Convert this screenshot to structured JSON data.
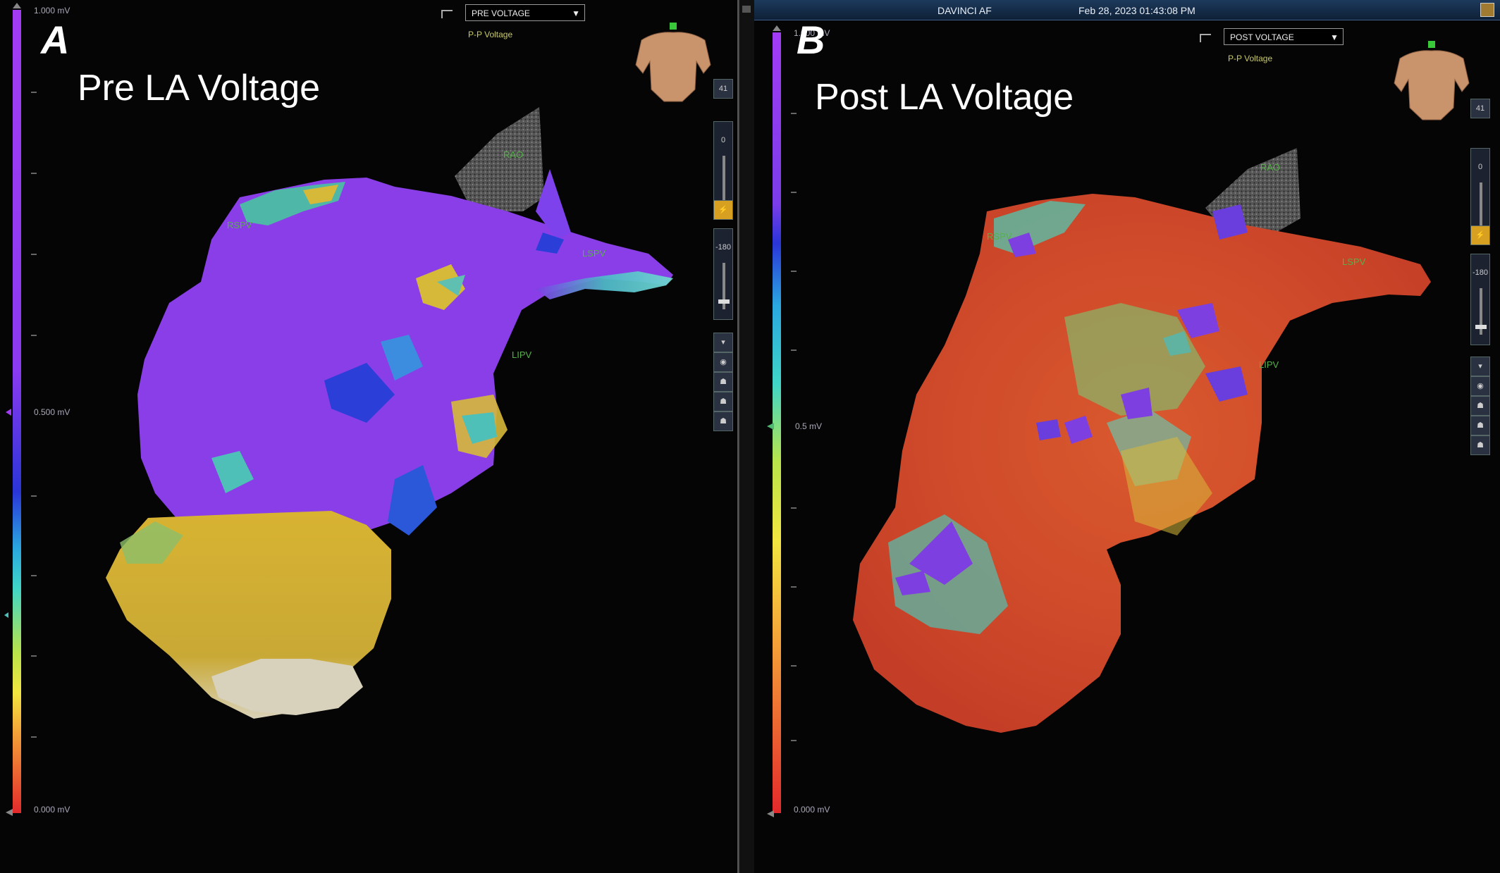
{
  "panel_a": {
    "letter": "A",
    "title": "Pre LA Voltage",
    "map_dropdown": "PRE VOLTAGE",
    "map_subtitle": "P-P Voltage",
    "scale": {
      "top": "1.000 mV",
      "mid": "0.500 mV",
      "bottom": "0.000 mV"
    },
    "labels": {
      "lspv": "LSPV",
      "lipv": "LIPV",
      "rspv": "RSPV",
      "rao": "RAO"
    },
    "tools": {
      "view_count": "41",
      "slider1_value": "0",
      "slider2_value": "-180"
    }
  },
  "panel_b": {
    "letter": "B",
    "title": "Post LA Voltage",
    "top_bar": {
      "system": "DAVINCI AF",
      "datetime": "Feb 28, 2023 01:43:08 PM"
    },
    "map_dropdown": "POST VOLTAGE",
    "map_subtitle": "P-P Voltage",
    "scale": {
      "top": "1.000 mV",
      "mid": "0.5 mV",
      "bottom": "0.000 mV"
    },
    "labels": {
      "lspv": "LSPV",
      "lipv": "LIPV",
      "rspv": "RSPV",
      "rao": "RAO"
    },
    "tools": {
      "view_count": "41",
      "slider1_value": "0",
      "slider2_value": "-180"
    }
  },
  "colors": {
    "voltage_high": "#9b3ff0",
    "voltage_low": "#e0322a",
    "background": "#050505"
  }
}
